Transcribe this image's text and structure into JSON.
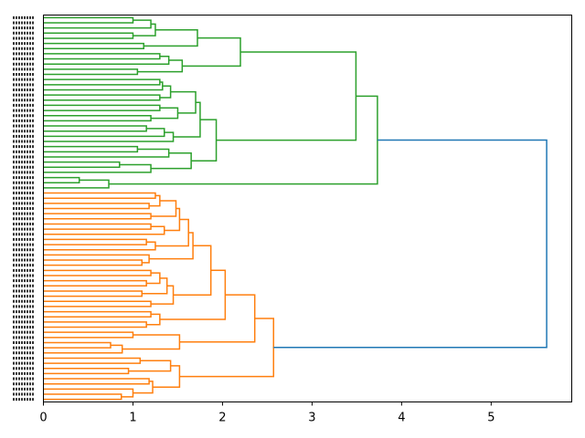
{
  "chart_data": {
    "type": "dendrogram",
    "title": "",
    "xlabel": "",
    "ylabel": "",
    "xlim": [
      0,
      5.9
    ],
    "xticks": [
      0,
      1,
      2,
      3,
      4,
      5
    ],
    "xtick_labels": [
      "0",
      "1",
      "2",
      "3",
      "4",
      "5"
    ],
    "orientation": "left",
    "link_color_above_threshold": "#1f77b4",
    "root": {
      "h": 5.62,
      "color": "#1f77b4",
      "children": [
        {
          "color": "#2ca02c",
          "tree": [
            3.73,
            [
              3.49,
              [
                2.2,
                [
                  1.72,
                  [
                    1.25,
                    [
                      1.2,
                      [
                        1.0,
                        0,
                        0
                      ],
                      0
                    ],
                    [
                      1.0,
                      0,
                      0
                    ]
                  ],
                  [
                    1.12,
                    0,
                    0
                  ]
                ],
                [
                  1.55,
                  [
                    1.4,
                    [
                      1.3,
                      0,
                      0
                    ],
                    0
                  ],
                  [
                    1.05,
                    0,
                    0
                  ]
                ]
              ],
              [
                1.93,
                [
                  1.75,
                  [
                    1.7,
                    [
                      1.42,
                      [
                        1.33,
                        [
                          1.3,
                          0,
                          0
                        ],
                        0
                      ],
                      [
                        1.3,
                        0,
                        0
                      ]
                    ],
                    [
                      1.5,
                      [
                        1.3,
                        0,
                        0
                      ],
                      [
                        1.2,
                        0,
                        0
                      ]
                    ]
                  ],
                  [
                    1.45,
                    [
                      1.35,
                      [
                        1.15,
                        0,
                        0
                      ],
                      0
                    ],
                    0
                  ]
                ],
                [
                  1.65,
                  [
                    1.4,
                    [
                      1.05,
                      0,
                      0
                    ],
                    0
                  ],
                  [
                    1.2,
                    [
                      0.85,
                      0,
                      0
                    ],
                    0
                  ]
                ]
              ]
            ],
            [
              0.73,
              [
                0.4,
                0,
                0
              ],
              0
            ]
          ]
        },
        {
          "color": "#ff7f0e",
          "tree": [
            2.57,
            [
              2.36,
              [
                2.03,
                [
                  1.87,
                  [
                    1.67,
                    [
                      1.62,
                      [
                        1.52,
                        [
                          1.48,
                          [
                            1.3,
                            [
                              1.25,
                              0,
                              0
                            ],
                            [
                              1.18,
                              0,
                              0
                            ]
                          ],
                          [
                            1.2,
                            0,
                            0
                          ]
                        ],
                        [
                          1.35,
                          [
                            1.2,
                            0,
                            0
                          ],
                          0
                        ]
                      ],
                      [
                        1.25,
                        [
                          1.15,
                          0,
                          0
                        ],
                        0
                      ]
                    ],
                    [
                      1.18,
                      0,
                      [
                        1.1,
                        0,
                        0
                      ]
                    ]
                  ],
                  [
                    1.45,
                    [
                      1.38,
                      [
                        1.3,
                        [
                          1.2,
                          0,
                          0
                        ],
                        [
                          1.15,
                          0,
                          0
                        ]
                      ],
                      [
                        1.1,
                        0,
                        0
                      ]
                    ],
                    [
                      1.2,
                      0,
                      0
                    ]
                  ]
                ],
                [
                  1.3,
                  [
                    1.2,
                    0,
                    0
                  ],
                  [
                    1.15,
                    0,
                    0
                  ]
                ]
              ],
              [
                1.52,
                [
                  1.0,
                  0,
                  0
                ],
                [
                  0.88,
                  [
                    0.75,
                    0,
                    0
                  ],
                  0
                ]
              ]
            ],
            [
              1.52,
              [
                1.42,
                [
                  1.08,
                  0,
                  0
                ],
                [
                  0.95,
                  0,
                  0
                ]
              ],
              [
                1.22,
                [
                  1.18,
                  0,
                  0
                ],
                [
                  1.0,
                  0,
                  [
                    0.87,
                    0,
                    0
                  ]
                ]
              ]
            ]
          ]
        }
      ]
    }
  }
}
